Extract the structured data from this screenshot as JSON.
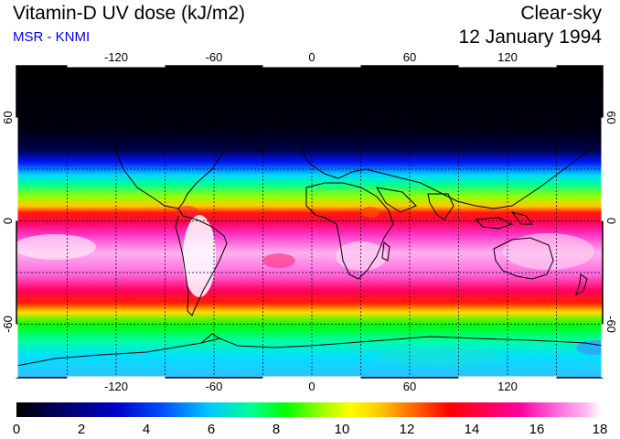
{
  "header": {
    "title": "Vitamin-D UV dose (kJ/m2)",
    "subtitle": "MSR - KNMI",
    "condition": "Clear-sky",
    "date": "12 January 1994"
  },
  "map": {
    "projection": "equirectangular",
    "lon_ticks": [
      "-120",
      "-60",
      "0",
      "60",
      "120"
    ],
    "lat_ticks": [
      "60",
      "0",
      "-60"
    ],
    "gridlines": "dashed"
  },
  "colorbar": {
    "labels": [
      "0",
      "2",
      "4",
      "6",
      "8",
      "10",
      "12",
      "14",
      "16",
      "18"
    ],
    "colors": [
      "#000000",
      "#000050",
      "#0000c8",
      "#0050ff",
      "#00c8ff",
      "#00ff96",
      "#00ff00",
      "#96ff00",
      "#ffff00",
      "#ffc800",
      "#ff6400",
      "#ff0000",
      "#ff0050",
      "#ff00a0",
      "#ff64dc",
      "#ffb4f0",
      "#ffffff"
    ]
  }
}
